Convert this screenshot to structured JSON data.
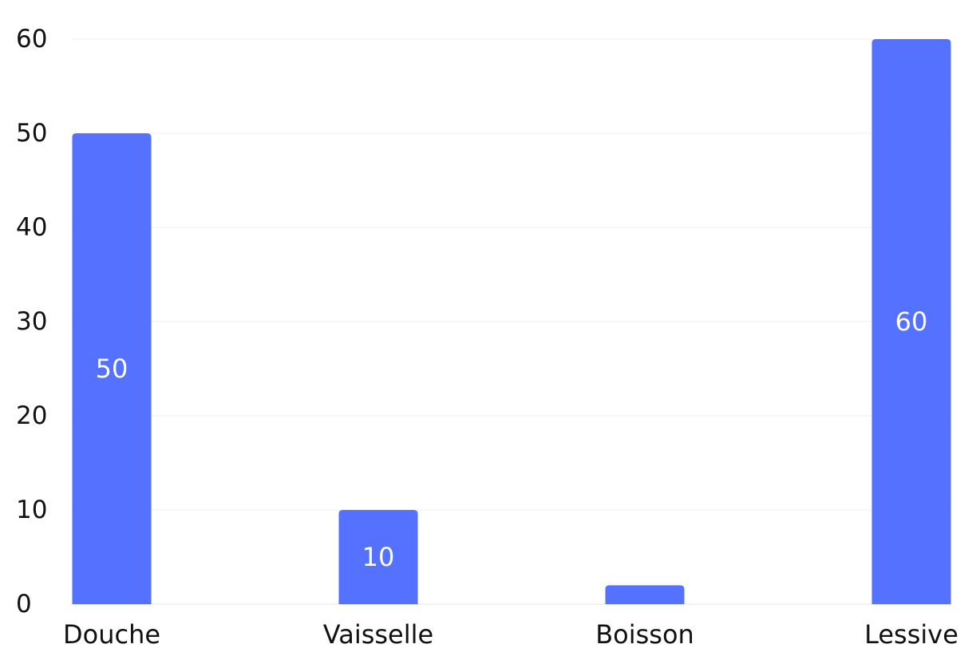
{
  "chart_data": {
    "type": "bar",
    "title": "",
    "xlabel": "",
    "ylabel": "",
    "categories": [
      "Douche",
      "Vaisselle",
      "Boisson",
      "Lessive"
    ],
    "values": [
      50,
      10,
      2,
      60
    ],
    "data_labels": [
      "50",
      "10",
      "",
      "60"
    ],
    "ylim": [
      0,
      60
    ],
    "yticks": [
      0,
      10,
      20,
      30,
      40,
      50,
      60
    ],
    "grid": true,
    "legend": "none",
    "bar_color": "#5472ff"
  }
}
